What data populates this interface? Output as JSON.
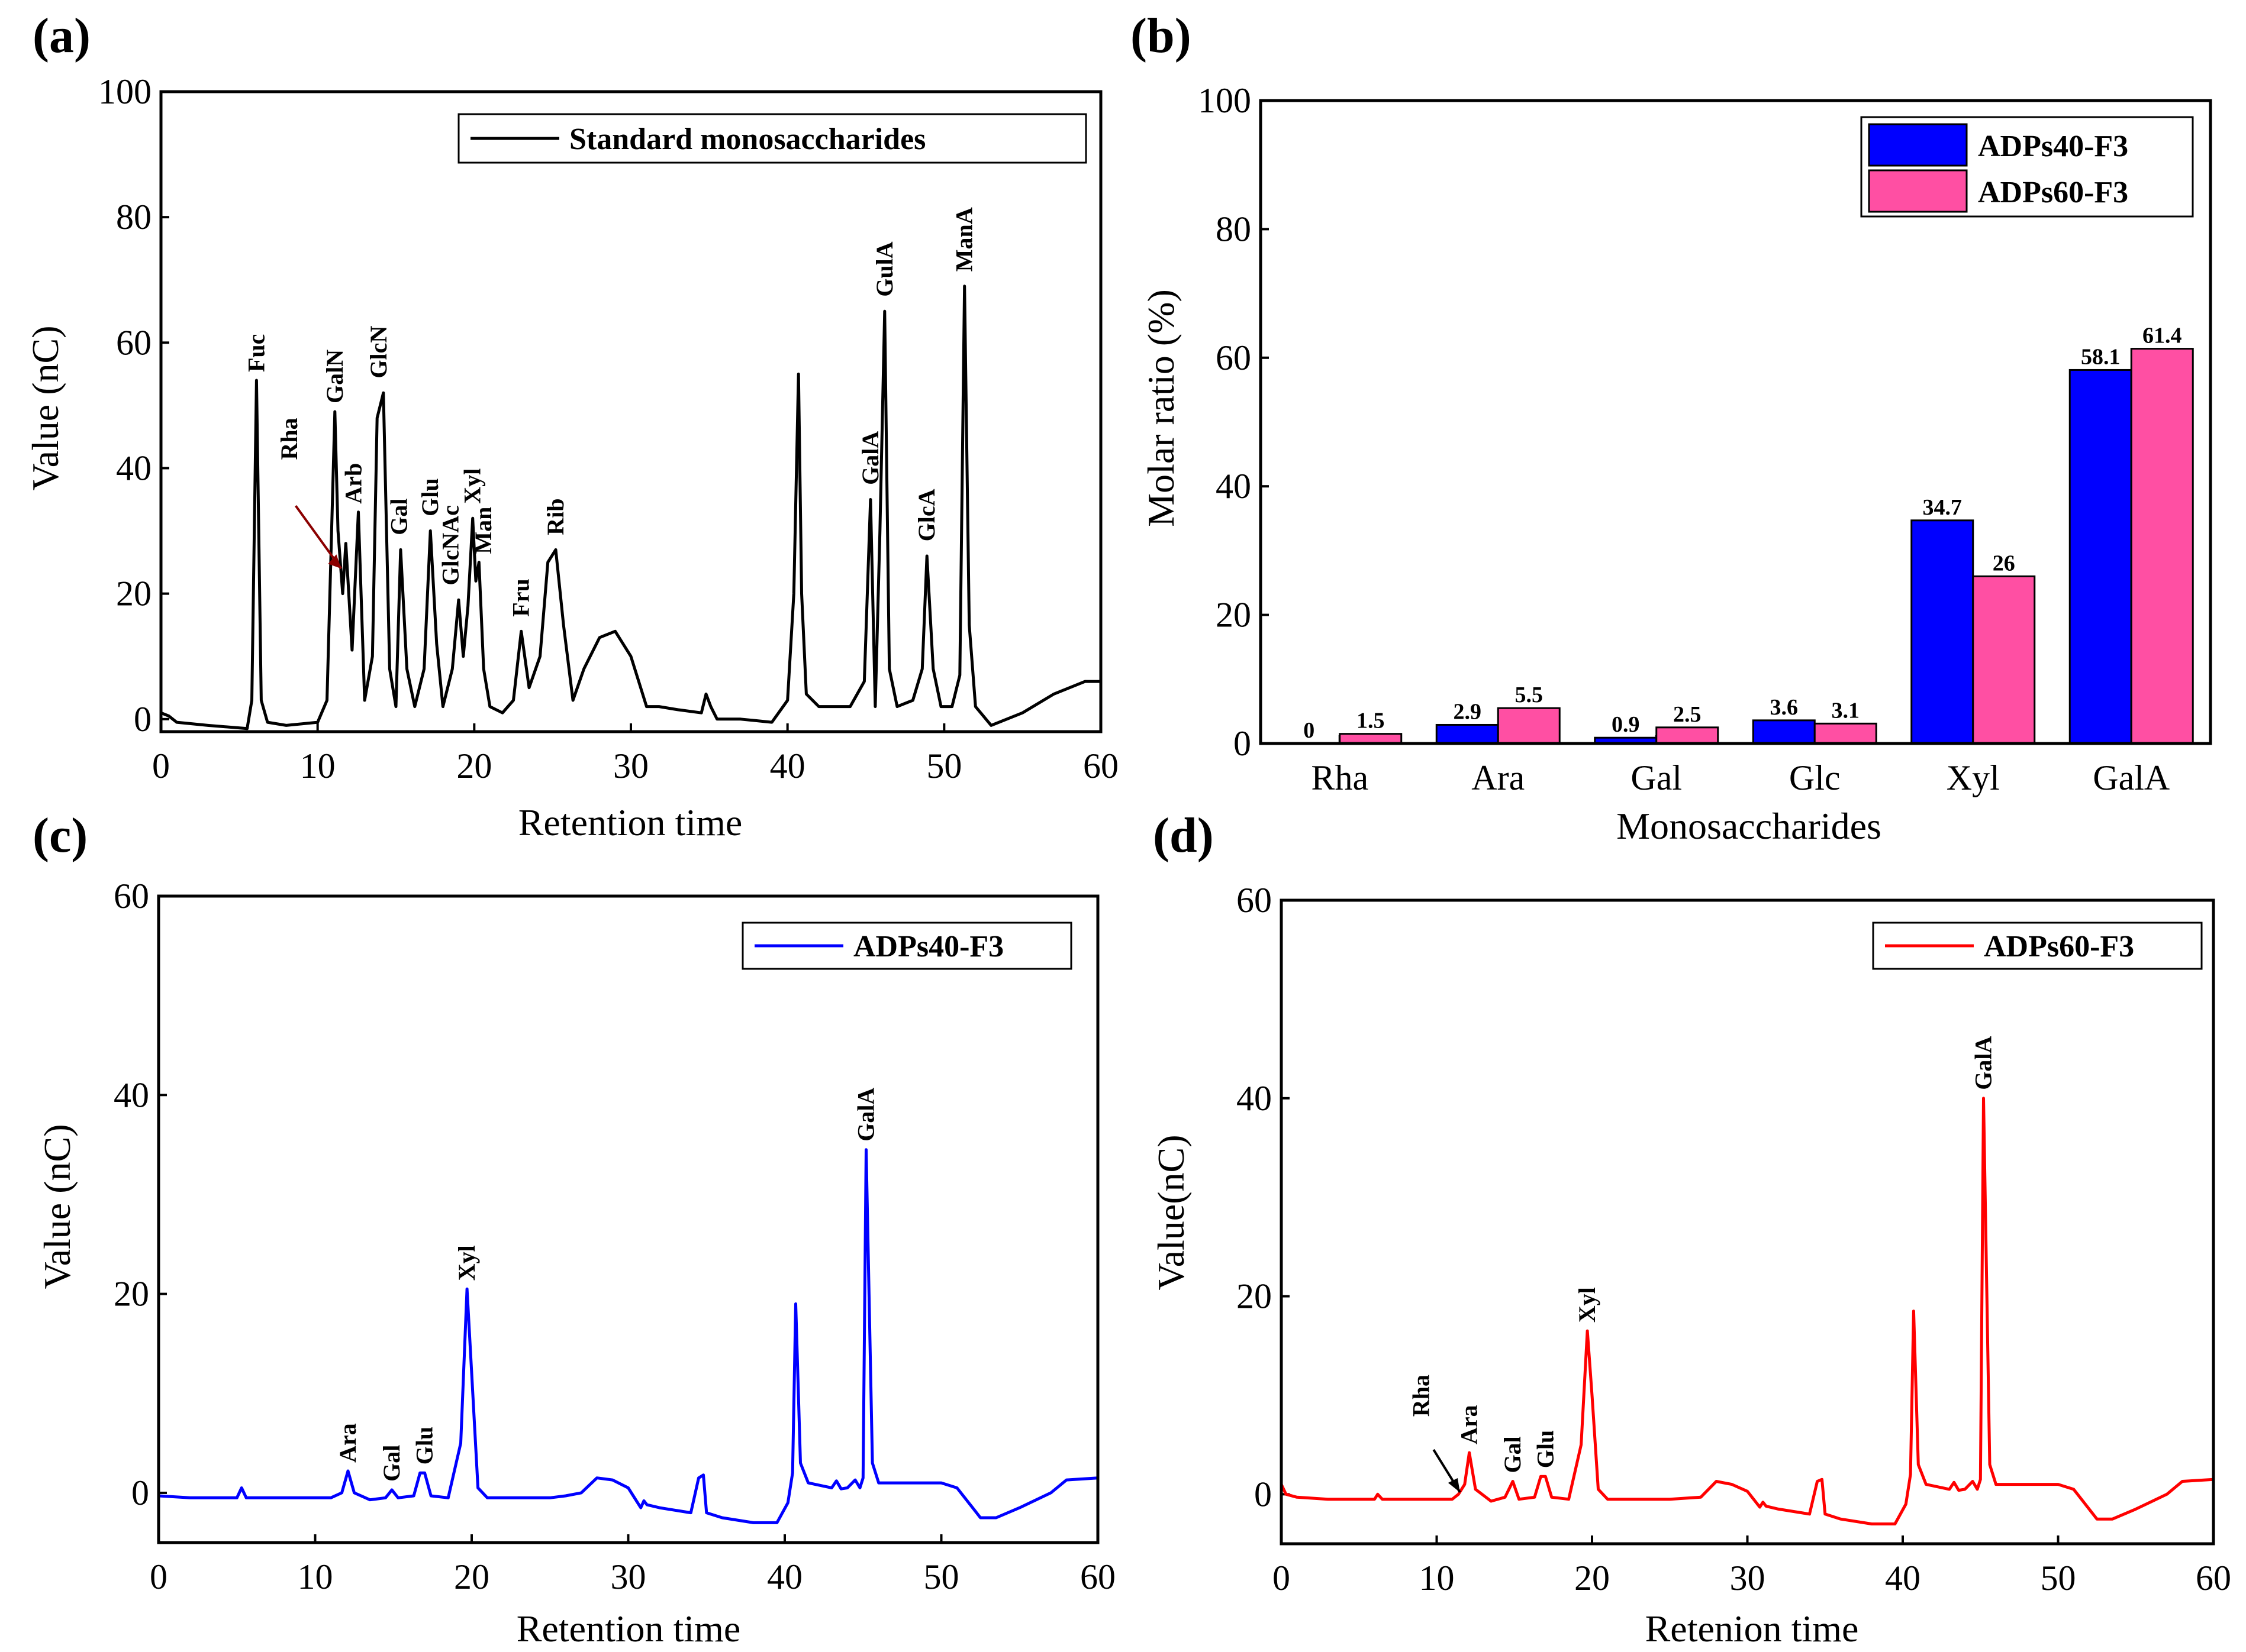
{
  "chart_data": [
    {
      "panel": "(a)",
      "type": "line",
      "xlabel": "Retention time",
      "ylabel": "Value (nC)",
      "xlim": [
        0,
        60
      ],
      "ylim": [
        -2,
        100
      ],
      "xticks": [
        0,
        10,
        20,
        30,
        40,
        50,
        60
      ],
      "yticks": [
        0,
        20,
        40,
        60,
        80,
        100
      ],
      "legend": "Standard monosaccharides",
      "color": "#000000",
      "series": [
        {
          "name": "Standard monosaccharides",
          "x": [
            0,
            0.5,
            1,
            3,
            5.5,
            5.8,
            6.1,
            6.4,
            6.8,
            8,
            10,
            10.6,
            11.1,
            11.3,
            11.6,
            11.8,
            12.2,
            12.6,
            13,
            13.5,
            13.8,
            14.2,
            14.6,
            15.0,
            15.3,
            15.7,
            16.2,
            16.8,
            17.2,
            17.6,
            18.0,
            18.6,
            19.0,
            19.3,
            19.6,
            19.9,
            20.1,
            20.3,
            20.6,
            21,
            21.8,
            22.5,
            23.0,
            23.5,
            24.2,
            24.7,
            25.2,
            25.7,
            26.3,
            27.0,
            28.0,
            29.0,
            30.0,
            31.0,
            31.8,
            33,
            34.5,
            34.8,
            35.1,
            35.5,
            37,
            39,
            40,
            40.4,
            40.7,
            40.9,
            41.2,
            42,
            44,
            44.9,
            45.3,
            45.6,
            45.9,
            46.2,
            46.5,
            47.0,
            48.0,
            48.6,
            48.9,
            49.3,
            49.8,
            50.5,
            51.0,
            51.3,
            51.6,
            52.0,
            53.0,
            55,
            57,
            59,
            60
          ],
          "y": [
            1,
            0.5,
            -0.5,
            -1,
            -1.5,
            3,
            54,
            3,
            -0.5,
            -1,
            -0.5,
            3,
            49,
            30,
            20,
            28,
            11,
            33,
            3,
            10,
            48,
            52,
            8,
            2,
            27,
            8,
            2,
            8,
            30,
            12,
            2,
            8,
            19,
            10,
            18,
            32,
            22,
            25,
            8,
            2,
            1,
            3,
            14,
            5,
            10,
            25,
            27,
            15,
            3,
            8,
            13,
            14,
            10,
            2,
            2,
            1.5,
            1,
            4,
            2,
            0,
            0,
            -0.5,
            3,
            20,
            55,
            20,
            4,
            2,
            2,
            6,
            35,
            2,
            30,
            65,
            8,
            2,
            3,
            8,
            26,
            8,
            2,
            2,
            7,
            69,
            15,
            2,
            -1,
            1,
            4,
            6,
            6
          ]
        }
      ],
      "peak_labels": [
        {
          "label": "Fuc",
          "x": 6.1,
          "y": 54
        },
        {
          "label": "GalN",
          "x": 11.1,
          "y": 49
        },
        {
          "label": "Rha",
          "x": 8.2,
          "y": 40
        },
        {
          "label": "Arb",
          "x": 12.3,
          "y": 33
        },
        {
          "label": "GlcN",
          "x": 13.9,
          "y": 53
        },
        {
          "label": "Gal",
          "x": 15.2,
          "y": 28
        },
        {
          "label": "Glu",
          "x": 17.2,
          "y": 31
        },
        {
          "label": "GlcNAc",
          "x": 18.5,
          "y": 20
        },
        {
          "label": "Xyl",
          "x": 19.9,
          "y": 33
        },
        {
          "label": "Man",
          "x": 20.6,
          "y": 25
        },
        {
          "label": "Fru",
          "x": 23.0,
          "y": 15
        },
        {
          "label": "Rib",
          "x": 25.2,
          "y": 28
        },
        {
          "label": "GalA",
          "x": 45.3,
          "y": 36
        },
        {
          "label": "GulA",
          "x": 46.2,
          "y": 66
        },
        {
          "label": "GlcA",
          "x": 48.9,
          "y": 27
        },
        {
          "label": "ManA",
          "x": 51.3,
          "y": 70
        }
      ],
      "arrow_color": "#8b0000"
    },
    {
      "panel": "(b)",
      "type": "bar",
      "xlabel": "Monosaccharides",
      "ylabel": "Molar ratio (%)",
      "ylim": [
        0,
        100
      ],
      "yticks": [
        0,
        20,
        40,
        60,
        80,
        100
      ],
      "categories": [
        "Rha",
        "Ara",
        "Gal",
        "Glc",
        "Xyl",
        "GalA"
      ],
      "series": [
        {
          "name": "ADPs40-F3",
          "color": "#0000ff",
          "values": [
            0,
            2.9,
            0.9,
            3.6,
            34.7,
            58.1
          ],
          "labels": [
            "0",
            "2.9",
            "0.9",
            "3.6",
            "34.7",
            "58.1"
          ]
        },
        {
          "name": "ADPs60-F3",
          "color": "#ff4fa3",
          "values": [
            1.5,
            5.5,
            2.5,
            3.1,
            26,
            61.4
          ],
          "labels": [
            "1.5",
            "5.5",
            "2.5",
            "3.1",
            "26",
            "61.4"
          ]
        }
      ],
      "legend_position": "top-right"
    },
    {
      "panel": "(c)",
      "type": "line",
      "xlabel": "Retention time",
      "ylabel": "Value (nC)",
      "xlim": [
        0,
        60
      ],
      "ylim": [
        -5,
        60
      ],
      "xticks": [
        0,
        10,
        20,
        30,
        40,
        50,
        60
      ],
      "yticks": [
        0,
        20,
        40,
        60
      ],
      "legend": "ADPs40-F3",
      "color": "#0000ff",
      "series": [
        {
          "name": "ADPs40-F3",
          "x": [
            0,
            2,
            5,
            5.3,
            5.6,
            8,
            11,
            11.7,
            12.1,
            12.5,
            13.5,
            14.5,
            14.9,
            15.3,
            16.3,
            16.7,
            17.0,
            17.4,
            18.5,
            19.3,
            19.7,
            20.0,
            20.4,
            21,
            23,
            25,
            26,
            27,
            28,
            29,
            30,
            30.8,
            31.0,
            31.2,
            32,
            34,
            34.5,
            34.8,
            35.0,
            36,
            38,
            39.5,
            40.2,
            40.5,
            40.7,
            41.0,
            41.5,
            43,
            43.3,
            43.6,
            44,
            44.5,
            44.8,
            45.0,
            45.2,
            45.6,
            46,
            48,
            50,
            51,
            52,
            52.5,
            53.5,
            55,
            57,
            58,
            60
          ],
          "y": [
            -0.3,
            -0.5,
            -0.5,
            0.5,
            -0.5,
            -0.5,
            -0.5,
            0,
            2.2,
            0,
            -0.7,
            -0.5,
            0.3,
            -0.5,
            -0.3,
            2.0,
            2.0,
            -0.3,
            -0.5,
            5,
            20.5,
            12,
            0.5,
            -0.5,
            -0.5,
            -0.5,
            -0.3,
            0,
            1.5,
            1.3,
            0.5,
            -1.5,
            -0.8,
            -1.2,
            -1.5,
            -2,
            1.5,
            1.8,
            -2,
            -2.5,
            -3,
            -3,
            -1,
            2,
            19,
            3,
            1,
            0.5,
            1.2,
            0.4,
            0.5,
            1.3,
            0.5,
            1.5,
            34.5,
            3,
            1,
            1,
            1,
            0.5,
            -1.5,
            -2.5,
            -2.5,
            -1.5,
            0,
            1.3,
            1.5
          ]
        }
      ],
      "peak_labels": [
        {
          "label": "Ara",
          "x": 12.1,
          "y": 2.2
        },
        {
          "label": "Gal",
          "x": 14.9,
          "y": 0.3
        },
        {
          "label": "Glu",
          "x": 17.0,
          "y": 2.0
        },
        {
          "label": "Xyl",
          "x": 19.7,
          "y": 20.5
        },
        {
          "label": "GalA",
          "x": 45.2,
          "y": 34.5
        }
      ]
    },
    {
      "panel": "(d)",
      "type": "line",
      "xlabel": "Retenion time",
      "ylabel": "Value(nC)",
      "xlim": [
        0,
        60
      ],
      "ylim": [
        -5,
        60
      ],
      "xticks": [
        0,
        10,
        20,
        30,
        40,
        50,
        60
      ],
      "yticks": [
        0,
        20,
        40,
        60
      ],
      "legend": "ADPs60-F3",
      "color": "#ff0000",
      "series": [
        {
          "name": "ADPs60-F3",
          "x": [
            0,
            0.3,
            1,
            3,
            6,
            6.2,
            6.5,
            9,
            11,
            11.4,
            11.8,
            12.1,
            12.5,
            13.5,
            14.4,
            14.9,
            15.3,
            16.3,
            16.7,
            17.0,
            17.4,
            18.5,
            19.3,
            19.7,
            20.0,
            20.4,
            21,
            23,
            25,
            27,
            28,
            29,
            30,
            30.8,
            31.0,
            31.2,
            32,
            34,
            34.5,
            34.8,
            35.0,
            36,
            38,
            39.5,
            40.2,
            40.5,
            40.7,
            41.0,
            41.5,
            43,
            43.3,
            43.6,
            44,
            44.5,
            44.8,
            45.0,
            45.2,
            45.6,
            46,
            48,
            50,
            51,
            52,
            52.5,
            53.5,
            55,
            57,
            58,
            60
          ],
          "y": [
            1,
            0,
            -0.3,
            -0.5,
            -0.5,
            0,
            -0.5,
            -0.5,
            -0.5,
            0,
            1,
            4.2,
            0.5,
            -0.7,
            -0.3,
            1.3,
            -0.5,
            -0.3,
            1.8,
            1.8,
            -0.3,
            -0.5,
            5,
            16.5,
            10,
            0.5,
            -0.5,
            -0.5,
            -0.5,
            -0.3,
            1.3,
            1.0,
            0.3,
            -1.3,
            -0.8,
            -1.2,
            -1.5,
            -2,
            1.3,
            1.5,
            -2,
            -2.5,
            -3,
            -3,
            -1,
            2,
            18.5,
            3,
            1,
            0.5,
            1.2,
            0.4,
            0.5,
            1.3,
            0.5,
            1.5,
            40,
            3,
            1,
            1,
            1,
            0.5,
            -1.5,
            -2.5,
            -2.5,
            -1.5,
            0,
            1.3,
            1.5
          ]
        }
      ],
      "peak_labels": [
        {
          "label": "Rha",
          "x": 9.0,
          "y": 7
        },
        {
          "label": "Ara",
          "x": 12.1,
          "y": 4.2
        },
        {
          "label": "Gal",
          "x": 14.9,
          "y": 1.3
        },
        {
          "label": "Glu",
          "x": 17.0,
          "y": 1.8
        },
        {
          "label": "Xyl",
          "x": 19.7,
          "y": 16.5
        },
        {
          "label": "GalA",
          "x": 45.2,
          "y": 40
        }
      ],
      "arrow_color": "#000000"
    }
  ]
}
